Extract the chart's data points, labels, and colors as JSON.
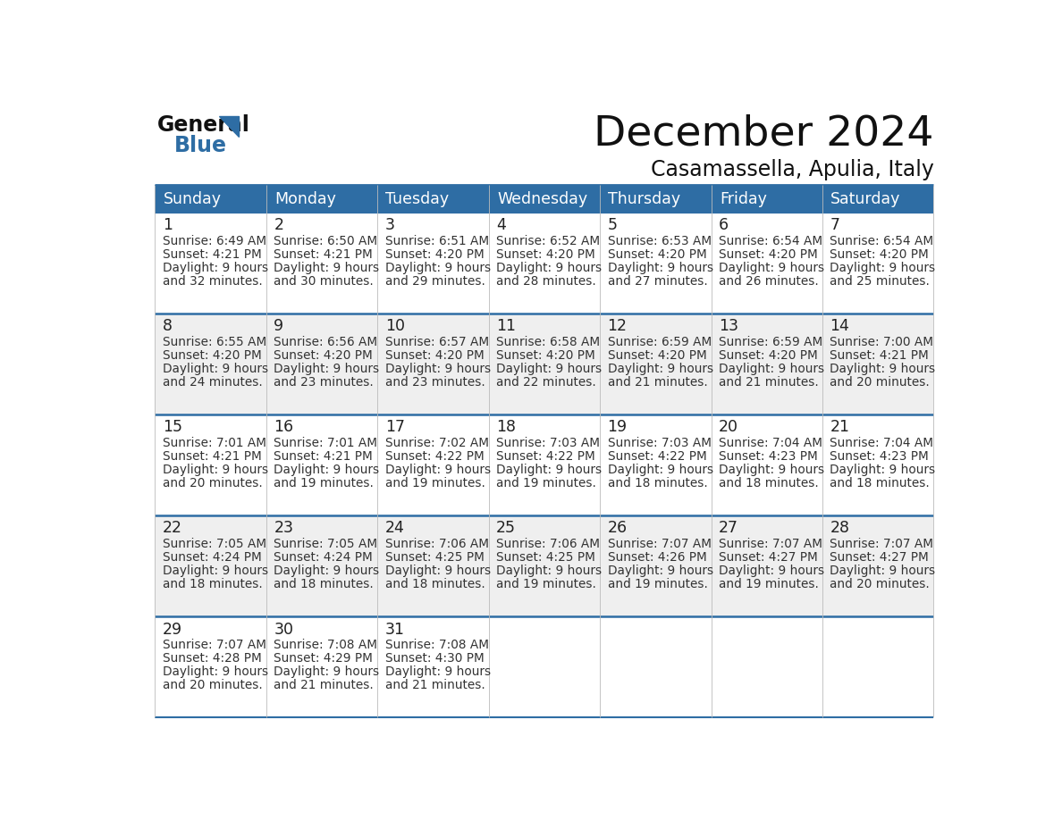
{
  "title": "December 2024",
  "subtitle": "Casamassella, Apulia, Italy",
  "days_of_week": [
    "Sunday",
    "Monday",
    "Tuesday",
    "Wednesday",
    "Thursday",
    "Friday",
    "Saturday"
  ],
  "header_bg_color": "#2E6DA4",
  "header_text_color": "#FFFFFF",
  "cell_bg_row0": "#FFFFFF",
  "cell_bg_row1": "#EFEFEF",
  "cell_bg_row2": "#FFFFFF",
  "cell_bg_row3": "#EFEFEF",
  "cell_bg_row4": "#FFFFFF",
  "row_separator_color": "#2E6DA4",
  "day_number_color": "#222222",
  "cell_text_color": "#333333",
  "title_color": "#111111",
  "subtitle_color": "#111111",
  "logo_general_color": "#111111",
  "logo_blue_color": "#2E6DA4",
  "calendar_data": [
    [
      {
        "day": 1,
        "sunrise": "6:49 AM",
        "sunset": "4:21 PM",
        "daylight_h": "9 hours",
        "daylight_m": "and 32 minutes."
      },
      {
        "day": 2,
        "sunrise": "6:50 AM",
        "sunset": "4:21 PM",
        "daylight_h": "9 hours",
        "daylight_m": "and 30 minutes."
      },
      {
        "day": 3,
        "sunrise": "6:51 AM",
        "sunset": "4:20 PM",
        "daylight_h": "9 hours",
        "daylight_m": "and 29 minutes."
      },
      {
        "day": 4,
        "sunrise": "6:52 AM",
        "sunset": "4:20 PM",
        "daylight_h": "9 hours",
        "daylight_m": "and 28 minutes."
      },
      {
        "day": 5,
        "sunrise": "6:53 AM",
        "sunset": "4:20 PM",
        "daylight_h": "9 hours",
        "daylight_m": "and 27 minutes."
      },
      {
        "day": 6,
        "sunrise": "6:54 AM",
        "sunset": "4:20 PM",
        "daylight_h": "9 hours",
        "daylight_m": "and 26 minutes."
      },
      {
        "day": 7,
        "sunrise": "6:54 AM",
        "sunset": "4:20 PM",
        "daylight_h": "9 hours",
        "daylight_m": "and 25 minutes."
      }
    ],
    [
      {
        "day": 8,
        "sunrise": "6:55 AM",
        "sunset": "4:20 PM",
        "daylight_h": "9 hours",
        "daylight_m": "and 24 minutes."
      },
      {
        "day": 9,
        "sunrise": "6:56 AM",
        "sunset": "4:20 PM",
        "daylight_h": "9 hours",
        "daylight_m": "and 23 minutes."
      },
      {
        "day": 10,
        "sunrise": "6:57 AM",
        "sunset": "4:20 PM",
        "daylight_h": "9 hours",
        "daylight_m": "and 23 minutes."
      },
      {
        "day": 11,
        "sunrise": "6:58 AM",
        "sunset": "4:20 PM",
        "daylight_h": "9 hours",
        "daylight_m": "and 22 minutes."
      },
      {
        "day": 12,
        "sunrise": "6:59 AM",
        "sunset": "4:20 PM",
        "daylight_h": "9 hours",
        "daylight_m": "and 21 minutes."
      },
      {
        "day": 13,
        "sunrise": "6:59 AM",
        "sunset": "4:20 PM",
        "daylight_h": "9 hours",
        "daylight_m": "and 21 minutes."
      },
      {
        "day": 14,
        "sunrise": "7:00 AM",
        "sunset": "4:21 PM",
        "daylight_h": "9 hours",
        "daylight_m": "and 20 minutes."
      }
    ],
    [
      {
        "day": 15,
        "sunrise": "7:01 AM",
        "sunset": "4:21 PM",
        "daylight_h": "9 hours",
        "daylight_m": "and 20 minutes."
      },
      {
        "day": 16,
        "sunrise": "7:01 AM",
        "sunset": "4:21 PM",
        "daylight_h": "9 hours",
        "daylight_m": "and 19 minutes."
      },
      {
        "day": 17,
        "sunrise": "7:02 AM",
        "sunset": "4:22 PM",
        "daylight_h": "9 hours",
        "daylight_m": "and 19 minutes."
      },
      {
        "day": 18,
        "sunrise": "7:03 AM",
        "sunset": "4:22 PM",
        "daylight_h": "9 hours",
        "daylight_m": "and 19 minutes."
      },
      {
        "day": 19,
        "sunrise": "7:03 AM",
        "sunset": "4:22 PM",
        "daylight_h": "9 hours",
        "daylight_m": "and 18 minutes."
      },
      {
        "day": 20,
        "sunrise": "7:04 AM",
        "sunset": "4:23 PM",
        "daylight_h": "9 hours",
        "daylight_m": "and 18 minutes."
      },
      {
        "day": 21,
        "sunrise": "7:04 AM",
        "sunset": "4:23 PM",
        "daylight_h": "9 hours",
        "daylight_m": "and 18 minutes."
      }
    ],
    [
      {
        "day": 22,
        "sunrise": "7:05 AM",
        "sunset": "4:24 PM",
        "daylight_h": "9 hours",
        "daylight_m": "and 18 minutes."
      },
      {
        "day": 23,
        "sunrise": "7:05 AM",
        "sunset": "4:24 PM",
        "daylight_h": "9 hours",
        "daylight_m": "and 18 minutes."
      },
      {
        "day": 24,
        "sunrise": "7:06 AM",
        "sunset": "4:25 PM",
        "daylight_h": "9 hours",
        "daylight_m": "and 18 minutes."
      },
      {
        "day": 25,
        "sunrise": "7:06 AM",
        "sunset": "4:25 PM",
        "daylight_h": "9 hours",
        "daylight_m": "and 19 minutes."
      },
      {
        "day": 26,
        "sunrise": "7:07 AM",
        "sunset": "4:26 PM",
        "daylight_h": "9 hours",
        "daylight_m": "and 19 minutes."
      },
      {
        "day": 27,
        "sunrise": "7:07 AM",
        "sunset": "4:27 PM",
        "daylight_h": "9 hours",
        "daylight_m": "and 19 minutes."
      },
      {
        "day": 28,
        "sunrise": "7:07 AM",
        "sunset": "4:27 PM",
        "daylight_h": "9 hours",
        "daylight_m": "and 20 minutes."
      }
    ],
    [
      {
        "day": 29,
        "sunrise": "7:07 AM",
        "sunset": "4:28 PM",
        "daylight_h": "9 hours",
        "daylight_m": "and 20 minutes."
      },
      {
        "day": 30,
        "sunrise": "7:08 AM",
        "sunset": "4:29 PM",
        "daylight_h": "9 hours",
        "daylight_m": "and 21 minutes."
      },
      {
        "day": 31,
        "sunrise": "7:08 AM",
        "sunset": "4:30 PM",
        "daylight_h": "9 hours",
        "daylight_m": "and 21 minutes."
      },
      null,
      null,
      null,
      null
    ]
  ],
  "num_rows": 5,
  "num_cols": 7
}
